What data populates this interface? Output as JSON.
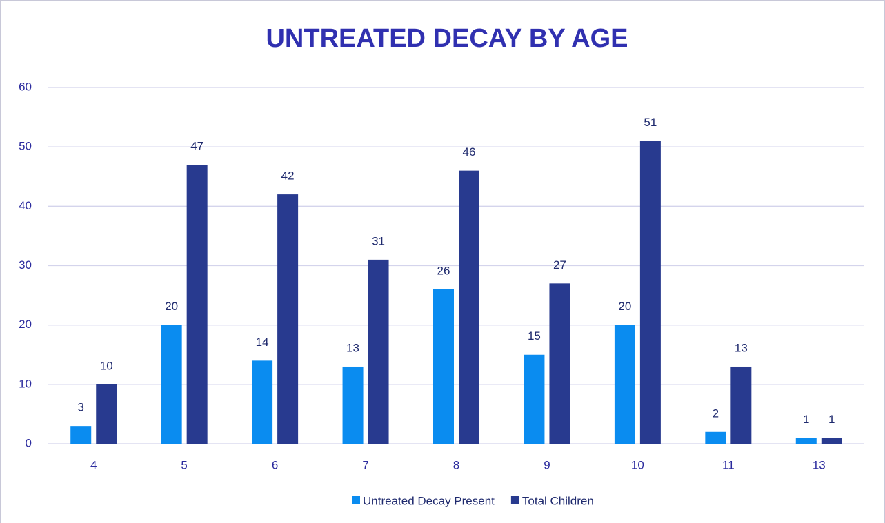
{
  "chart_data": {
    "type": "bar",
    "title": "UNTREATED DECAY BY AGE",
    "categories": [
      "4",
      "5",
      "6",
      "7",
      "8",
      "9",
      "10",
      "11",
      "13"
    ],
    "series": [
      {
        "name": "Untreated Decay Present",
        "color": "#0a8cf0",
        "values": [
          3,
          20,
          14,
          13,
          26,
          15,
          20,
          2,
          1
        ]
      },
      {
        "name": "Total Children",
        "color": "#283a8f",
        "values": [
          10,
          47,
          42,
          31,
          46,
          27,
          51,
          13,
          1
        ]
      }
    ],
    "ylim": [
      0,
      60
    ],
    "yticks": [
      0,
      10,
      20,
      30,
      40,
      50,
      60
    ],
    "grid": true,
    "legend": "bottom"
  }
}
